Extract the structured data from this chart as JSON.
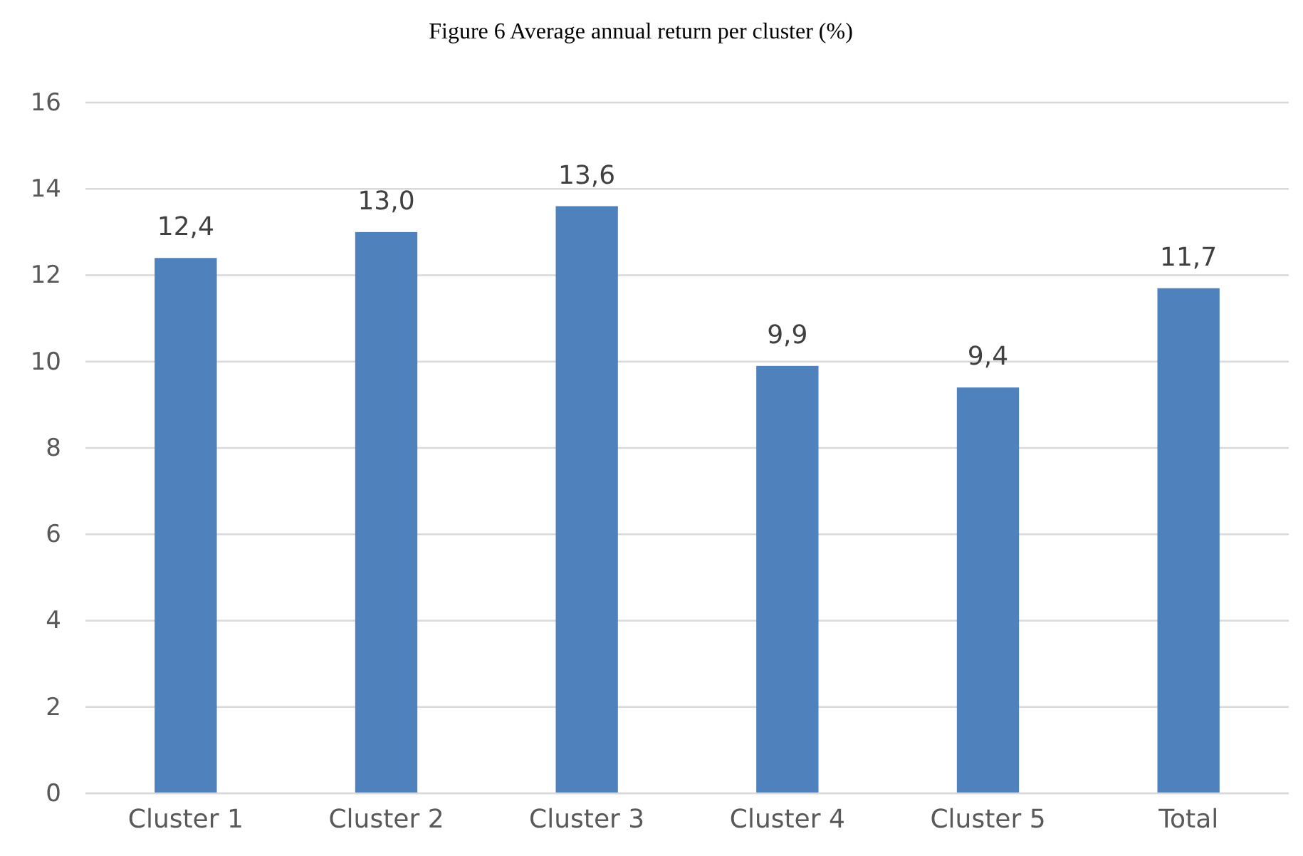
{
  "chart_data": {
    "type": "bar",
    "title": "Figure 6 Average annual return per cluster (%)",
    "categories": [
      "Cluster 1",
      "Cluster 2",
      "Cluster 3",
      "Cluster 4",
      "Cluster 5",
      "Total"
    ],
    "values": [
      12.4,
      13.0,
      13.6,
      9.9,
      9.4,
      11.7
    ],
    "value_labels": [
      "12,4",
      "13,0",
      "13,6",
      "9,9",
      "9,4",
      "11,7"
    ],
    "color": "#4f81bd",
    "ylim": [
      0,
      16
    ],
    "yticks": [
      0,
      2,
      4,
      6,
      8,
      10,
      12,
      14,
      16
    ],
    "grid": "y"
  }
}
